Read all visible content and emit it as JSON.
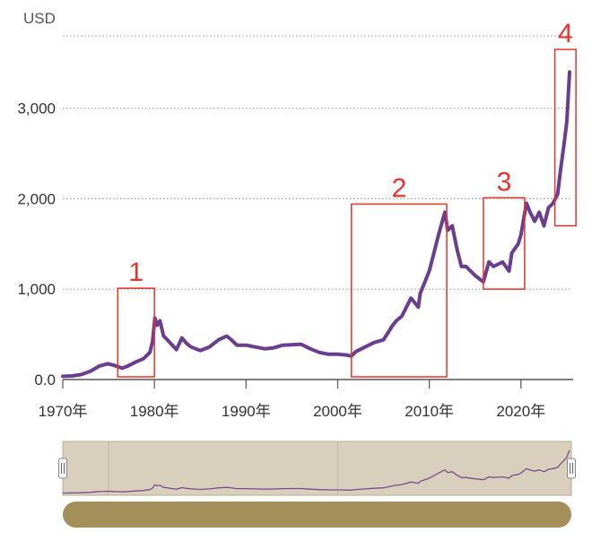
{
  "chart_data": {
    "type": "line",
    "unit_label": "USD",
    "ylim": [
      0,
      3800
    ],
    "xlim": [
      1970,
      2025.5
    ],
    "y_ticks": [
      {
        "value": 0,
        "label": "0.0"
      },
      {
        "value": 1000,
        "label": "1,000"
      },
      {
        "value": 2000,
        "label": "2,000"
      },
      {
        "value": 3000,
        "label": "3,000"
      }
    ],
    "x_ticks": [
      {
        "value": 1970,
        "label": "1970年"
      },
      {
        "value": 1980,
        "label": "1980年"
      },
      {
        "value": 1990,
        "label": "1990年"
      },
      {
        "value": 2000,
        "label": "2000年"
      },
      {
        "value": 2010,
        "label": "2010年"
      },
      {
        "value": 2020,
        "label": "2020年"
      }
    ],
    "grid": "horizontal dotted",
    "series": [
      {
        "color": "#6a3d8f",
        "x": [
          1970,
          1971,
          1972,
          1973,
          1974,
          1974.9,
          1975.5,
          1976.5,
          1977,
          1978,
          1978.8,
          1979.5,
          1979.8,
          1980.05,
          1980.3,
          1980.6,
          1981,
          1981.5,
          1982.4,
          1983,
          1983.5,
          1984,
          1985,
          1986,
          1987,
          1987.9,
          1988.5,
          1989,
          1990,
          1991,
          1992,
          1993,
          1994,
          1995,
          1996,
          1997,
          1998,
          1999,
          2000,
          2001,
          2001.5,
          2002,
          2003,
          2004,
          2005,
          2006,
          2006.4,
          2007,
          2008,
          2008.8,
          2009,
          2010,
          2011,
          2011.7,
          2012,
          2012.5,
          2013,
          2013.5,
          2014,
          2015,
          2015.9,
          2016.5,
          2017,
          2018,
          2018.7,
          2019,
          2019.7,
          2020,
          2020.6,
          2021,
          2021.5,
          2022,
          2022.5,
          2023,
          2023.5,
          2024,
          2024.3,
          2024.7,
          2025,
          2025.3
        ],
        "y": [
          36,
          40,
          55,
          90,
          150,
          175,
          160,
          125,
          145,
          195,
          230,
          300,
          420,
          680,
          600,
          650,
          480,
          430,
          330,
          460,
          400,
          360,
          320,
          360,
          440,
          480,
          430,
          380,
          380,
          360,
          340,
          350,
          380,
          385,
          390,
          340,
          300,
          280,
          280,
          270,
          260,
          310,
          360,
          410,
          440,
          600,
          650,
          700,
          900,
          800,
          950,
          1200,
          1600,
          1850,
          1650,
          1700,
          1450,
          1250,
          1250,
          1150,
          1080,
          1300,
          1250,
          1300,
          1200,
          1400,
          1500,
          1600,
          1950,
          1850,
          1750,
          1850,
          1700,
          1900,
          1950,
          2050,
          2300,
          2600,
          2850,
          3400
        ]
      }
    ],
    "annotations": [
      {
        "label": "1",
        "x_range": [
          1976,
          1980
        ],
        "y_range": [
          30,
          1010
        ]
      },
      {
        "label": "2",
        "x_range": [
          2001.5,
          2011.9
        ],
        "y_range": [
          30,
          1940
        ]
      },
      {
        "label": "3",
        "x_range": [
          2015.9,
          2020.4
        ],
        "y_range": [
          1000,
          2010
        ]
      },
      {
        "label": "4",
        "x_range": [
          2023.7,
          2026
        ],
        "y_range": [
          1700,
          3650
        ]
      }
    ],
    "navigator": {
      "series_color": "#7a4c8e",
      "background": "#d8d0bc",
      "scrollbar_color": "#a48e5a"
    }
  }
}
